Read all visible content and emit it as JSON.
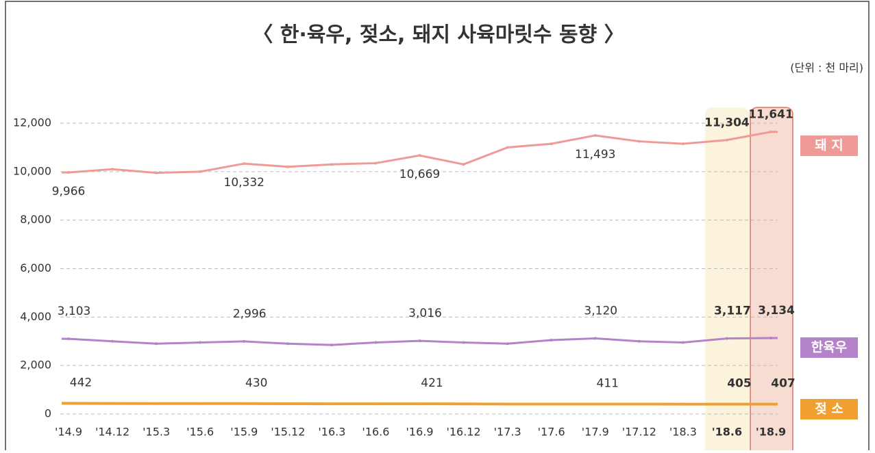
{
  "chart_data": {
    "type": "line",
    "title": "〈 한·육우, 젖소, 돼지 사육마릿수 동향 〉",
    "subtitle": "(단위 : 천 마리)",
    "categories": [
      "'14.9",
      "'14.12",
      "'15.3",
      "'15.6",
      "'15.9",
      "'15.12",
      "'16.3",
      "'16.6",
      "'16.9",
      "'16.12",
      "'17.3",
      "'17.6",
      "'17.9",
      "'17.12",
      "'18.3",
      "'18.6",
      "'18.9"
    ],
    "ylim": [
      0,
      12000
    ],
    "yticks": [
      0,
      {
        "value": 2000,
        "label": "2,000"
      },
      {
        "value": 4000,
        "label": "4,000"
      },
      {
        "value": 6000,
        "label": "6,000"
      },
      {
        "value": 8000,
        "label": "8,000"
      },
      {
        "value": 10000,
        "label": "10,000"
      },
      {
        "value": 12000,
        "label": "12,000"
      }
    ],
    "grid": true,
    "series": [
      {
        "name": "돼 지",
        "color": "#ef9a96",
        "values": [
          9966,
          10100,
          9950,
          10000,
          10332,
          10200,
          10300,
          10350,
          10669,
          10300,
          11000,
          11150,
          11493,
          11250,
          11150,
          11304,
          11641
        ],
        "value_labels": [
          "9,966",
          null,
          null,
          null,
          "10,332",
          null,
          null,
          null,
          "10,669",
          null,
          null,
          null,
          "11,493",
          null,
          null,
          "11,304",
          "11,641"
        ]
      },
      {
        "name": "한육우",
        "color": "#b382c8",
        "values": [
          3103,
          3000,
          2900,
          2950,
          2996,
          2900,
          2850,
          2950,
          3016,
          2950,
          2900,
          3050,
          3120,
          3000,
          2950,
          3117,
          3134
        ],
        "value_labels": [
          "3,103",
          null,
          null,
          null,
          "2,996",
          null,
          null,
          null,
          "3,016",
          null,
          null,
          null,
          "3,120",
          null,
          null,
          "3,117",
          "3,134"
        ]
      },
      {
        "name": "젖 소",
        "color": "#f0a030",
        "values": [
          442,
          435,
          430,
          430,
          430,
          425,
          420,
          420,
          421,
          415,
          410,
          410,
          411,
          408,
          405,
          405,
          407
        ]
      }
    ]
  }
}
